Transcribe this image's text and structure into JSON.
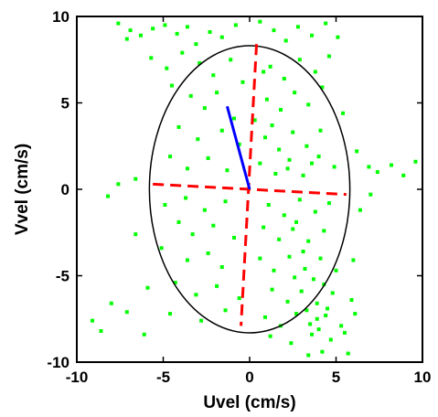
{
  "chart_data": {
    "type": "scatter",
    "title": "",
    "xlabel": "Uvel (cm/s)",
    "ylabel": "Vvel (cm/s)",
    "xlim": [
      -10,
      10
    ],
    "ylim": [
      -10,
      10
    ],
    "xticks": [
      -10,
      -5,
      0,
      5,
      10
    ],
    "yticks": [
      -10,
      -5,
      0,
      5,
      10
    ],
    "grid": false,
    "legend": "none",
    "colors": {
      "points": "#00ff00",
      "ellipse": "#000000",
      "axes_dashed": "#ff0000",
      "mean_vector": "#0000ff",
      "frame": "#000000"
    },
    "ellipse": {
      "center": [
        0,
        0
      ],
      "u_semi_axis": 5.8,
      "v_semi_axis": 8.3
    },
    "principal_axes": [
      {
        "from": [
          -5.6,
          0.3
        ],
        "to": [
          5.6,
          -0.3
        ]
      },
      {
        "from": [
          0.4,
          8.4
        ],
        "to": [
          -0.5,
          -7.9
        ]
      }
    ],
    "mean_vector": {
      "from": [
        0,
        0
      ],
      "to": [
        -1.3,
        4.8
      ]
    },
    "points": [
      [
        -7.6,
        9.6
      ],
      [
        -6.9,
        9.2
      ],
      [
        -7.1,
        8.7
      ],
      [
        -6.3,
        8.9
      ],
      [
        -5.6,
        9.3
      ],
      [
        -4.9,
        9.5
      ],
      [
        -4.2,
        9.0
      ],
      [
        -3.6,
        9.4
      ],
      [
        -3.1,
        8.4
      ],
      [
        -2.3,
        9.1
      ],
      [
        -1.6,
        8.8
      ],
      [
        -0.8,
        9.5
      ],
      [
        0.6,
        9.7
      ],
      [
        1.4,
        9.2
      ],
      [
        2.1,
        8.6
      ],
      [
        2.8,
        9.4
      ],
      [
        3.6,
        8.9
      ],
      [
        4.4,
        9.6
      ],
      [
        5.1,
        8.8
      ],
      [
        -5.7,
        7.6
      ],
      [
        -4.8,
        7.0
      ],
      [
        -3.9,
        7.9
      ],
      [
        -2.9,
        7.3
      ],
      [
        -2.1,
        6.6
      ],
      [
        -1.1,
        7.5
      ],
      [
        1.2,
        7.1
      ],
      [
        2.0,
        6.4
      ],
      [
        2.9,
        7.5
      ],
      [
        3.8,
        6.8
      ],
      [
        4.6,
        7.7
      ],
      [
        -4.5,
        6.0
      ],
      [
        -3.4,
        5.4
      ],
      [
        -2.6,
        4.7
      ],
      [
        -1.9,
        5.6
      ],
      [
        1.0,
        5.2
      ],
      [
        1.8,
        4.6
      ],
      [
        2.6,
        5.6
      ],
      [
        3.4,
        4.9
      ],
      [
        4.2,
        5.9
      ],
      [
        5.4,
        4.4
      ],
      [
        -4.1,
        3.6
      ],
      [
        -3.0,
        2.9
      ],
      [
        -1.6,
        3.4
      ],
      [
        -0.6,
        2.6
      ],
      [
        0.9,
        3.0
      ],
      [
        1.7,
        2.3
      ],
      [
        2.5,
        3.3
      ],
      [
        3.3,
        2.5
      ],
      [
        4.1,
        3.4
      ],
      [
        -4.6,
        1.9
      ],
      [
        -3.6,
        1.2
      ],
      [
        -2.4,
        1.8
      ],
      [
        -1.3,
        1.1
      ],
      [
        0.6,
        1.5
      ],
      [
        1.5,
        0.9
      ],
      [
        2.3,
        1.7
      ],
      [
        3.1,
        0.8
      ],
      [
        4.0,
        1.9
      ],
      [
        4.9,
        1.3
      ],
      [
        -7.6,
        0.3
      ],
      [
        -8.2,
        -0.4
      ],
      [
        -6.6,
        0.6
      ],
      [
        -4.9,
        -0.9
      ],
      [
        -3.7,
        -0.5
      ],
      [
        -2.6,
        -1.2
      ],
      [
        -1.4,
        -0.7
      ],
      [
        1.1,
        -0.9
      ],
      [
        2.0,
        -1.5
      ],
      [
        2.9,
        -0.6
      ],
      [
        3.8,
        -1.3
      ],
      [
        4.6,
        -0.8
      ],
      [
        -4.1,
        -1.9
      ],
      [
        -3.3,
        -2.6
      ],
      [
        -2.1,
        -2.1
      ],
      [
        -0.9,
        -2.8
      ],
      [
        0.8,
        -2.2
      ],
      [
        1.7,
        -2.9
      ],
      [
        2.5,
        -2.3
      ],
      [
        3.4,
        -3.0
      ],
      [
        4.3,
        -2.4
      ],
      [
        -6.6,
        -2.6
      ],
      [
        -5.1,
        -3.4
      ],
      [
        -3.6,
        -4.1
      ],
      [
        -2.4,
        -3.7
      ],
      [
        -1.6,
        -4.5
      ],
      [
        0.6,
        -4.0
      ],
      [
        1.4,
        -4.7
      ],
      [
        2.3,
        -3.9
      ],
      [
        3.2,
        -4.6
      ],
      [
        4.1,
        -4.0
      ],
      [
        5.0,
        -4.7
      ],
      [
        -5.9,
        -5.7
      ],
      [
        -4.3,
        -5.4
      ],
      [
        -3.1,
        -6.1
      ],
      [
        -1.9,
        -5.6
      ],
      [
        -0.6,
        -6.3
      ],
      [
        1.3,
        -5.8
      ],
      [
        2.2,
        -6.5
      ],
      [
        3.0,
        -5.9
      ],
      [
        3.9,
        -6.6
      ],
      [
        4.8,
        -6.0
      ],
      [
        -8.0,
        -6.6
      ],
      [
        -7.1,
        -7.1
      ],
      [
        -4.6,
        -7.2
      ],
      [
        -2.8,
        -7.6
      ],
      [
        -1.4,
        -7.0
      ],
      [
        0.9,
        -7.4
      ],
      [
        1.8,
        -7.9
      ],
      [
        2.7,
        -7.2
      ],
      [
        3.5,
        -7.8
      ],
      [
        4.4,
        -7.3
      ],
      [
        5.3,
        -7.9
      ],
      [
        -9.1,
        -7.6
      ],
      [
        -8.6,
        -8.2
      ],
      [
        -6.1,
        -8.4
      ],
      [
        1.2,
        -8.5
      ],
      [
        2.4,
        -8.9
      ],
      [
        3.6,
        -8.4
      ],
      [
        4.7,
        -8.7
      ],
      [
        5.5,
        -8.3
      ],
      [
        3.4,
        -9.6
      ],
      [
        4.2,
        -9.4
      ],
      [
        5.7,
        -9.5
      ],
      [
        6.2,
        2.2
      ],
      [
        6.9,
        1.3
      ],
      [
        7.4,
        1.0
      ],
      [
        8.2,
        1.4
      ],
      [
        8.9,
        0.8
      ],
      [
        9.6,
        1.6
      ],
      [
        6.4,
        -1.2
      ],
      [
        7.0,
        -0.3
      ],
      [
        6.0,
        -4.1
      ],
      [
        5.9,
        -6.4
      ],
      [
        6.1,
        -7.2
      ],
      [
        0.3,
        4.0
      ],
      [
        -0.4,
        6.2
      ],
      [
        0.8,
        6.8
      ],
      [
        -0.9,
        4.1
      ],
      [
        1.3,
        3.7
      ],
      [
        2.2,
        1.2
      ],
      [
        3.6,
        1.5
      ],
      [
        2.7,
        -1.9
      ],
      [
        3.1,
        -3.6
      ],
      [
        3.7,
        -5.2
      ],
      [
        4.3,
        -5.5
      ],
      [
        2.6,
        -5.1
      ],
      [
        4.5,
        -6.9
      ],
      [
        3.3,
        -7.0
      ],
      [
        3.9,
        -7.5
      ],
      [
        4.0,
        -8.1
      ]
    ]
  }
}
